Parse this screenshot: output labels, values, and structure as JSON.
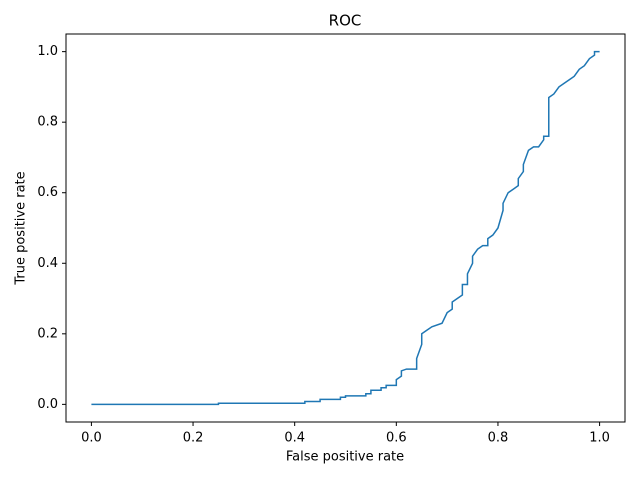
{
  "chart_data": {
    "type": "line",
    "title": "ROC",
    "xlabel": "False positive rate",
    "ylabel": "True positive rate",
    "color": "#1f77b4",
    "x": [
      0,
      0.25,
      0.25,
      0.42,
      0.42,
      0.45,
      0.45,
      0.49,
      0.49,
      0.5,
      0.5,
      0.54,
      0.54,
      0.55,
      0.55,
      0.57,
      0.57,
      0.58,
      0.58,
      0.6,
      0.6,
      0.61,
      0.61,
      0.62,
      0.64,
      0.64,
      0.65,
      0.65,
      0.66,
      0.67,
      0.69,
      0.7,
      0.71,
      0.71,
      0.72,
      0.73,
      0.73,
      0.74,
      0.74,
      0.75,
      0.75,
      0.76,
      0.77,
      0.78,
      0.78,
      0.79,
      0.8,
      0.81,
      0.81,
      0.82,
      0.83,
      0.84,
      0.84,
      0.85,
      0.85,
      0.86,
      0.87,
      0.88,
      0.89,
      0.89,
      0.9,
      0.9,
      0.9,
      0.91,
      0.92,
      0.93,
      0.94,
      0.95,
      0.96,
      0.97,
      0.98,
      0.99,
      0.99,
      1.0
    ],
    "values": [
      0,
      0,
      0.003,
      0.003,
      0.008,
      0.008,
      0.014,
      0.014,
      0.02,
      0.02,
      0.024,
      0.024,
      0.03,
      0.03,
      0.04,
      0.04,
      0.047,
      0.047,
      0.054,
      0.054,
      0.07,
      0.08,
      0.095,
      0.1,
      0.1,
      0.13,
      0.17,
      0.2,
      0.21,
      0.22,
      0.23,
      0.26,
      0.27,
      0.29,
      0.3,
      0.31,
      0.34,
      0.34,
      0.37,
      0.4,
      0.42,
      0.44,
      0.45,
      0.45,
      0.47,
      0.48,
      0.5,
      0.55,
      0.57,
      0.6,
      0.61,
      0.62,
      0.64,
      0.66,
      0.68,
      0.72,
      0.73,
      0.73,
      0.75,
      0.76,
      0.76,
      0.84,
      0.87,
      0.88,
      0.9,
      0.91,
      0.92,
      0.93,
      0.95,
      0.96,
      0.98,
      0.99,
      1.0,
      1.0
    ],
    "xlim": [
      -0.05,
      1.05
    ],
    "ylim": [
      -0.05,
      1.05
    ],
    "xticks": [
      {
        "value": 0,
        "label": "0.0"
      },
      0.2,
      0.4,
      0.6,
      0.8,
      {
        "value": 1,
        "label": "1.0"
      }
    ],
    "yticks": [
      {
        "value": 0,
        "label": "0.0"
      },
      0.2,
      0.4,
      0.6,
      0.8,
      {
        "value": 1,
        "label": "1.0"
      }
    ]
  }
}
